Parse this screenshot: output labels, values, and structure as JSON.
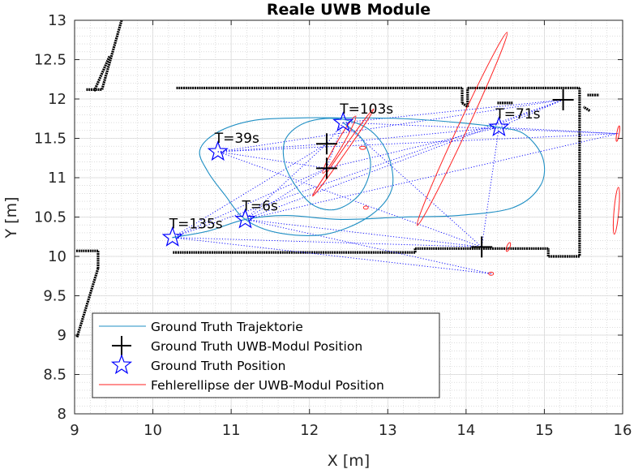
{
  "chart_data": {
    "type": "scatter",
    "title": "Reale UWB Module",
    "xlabel": "X [m]",
    "ylabel": "Y [m]",
    "xlim": [
      9,
      16
    ],
    "ylim": [
      8,
      13
    ],
    "xticks": [
      9,
      10,
      11,
      12,
      13,
      14,
      15,
      16
    ],
    "yticks": [
      8,
      8.5,
      9,
      9.5,
      10,
      10.5,
      11,
      11.5,
      12,
      12.5,
      13
    ],
    "grid": true,
    "minor_grid": true,
    "legend_position": "bottom-left",
    "legend": [
      {
        "label": "Ground Truth Trajektorie",
        "marker": "line",
        "color": "#0072BD"
      },
      {
        "label": "Ground Truth UWB-Modul Position",
        "marker": "plus",
        "color": "#000000"
      },
      {
        "label": "Ground Truth Position",
        "marker": "star",
        "color": "#0000FF"
      },
      {
        "label": "Fehlerellipse der UWB-Modul Position",
        "marker": "line",
        "color": "#FF0000"
      }
    ],
    "gt_positions": [
      {
        "x": 10.25,
        "y": 10.24,
        "label": "T=135s"
      },
      {
        "x": 11.18,
        "y": 10.47,
        "label": "T=6s"
      },
      {
        "x": 10.83,
        "y": 11.33,
        "label": "T=39s"
      },
      {
        "x": 12.43,
        "y": 11.7,
        "label": "T=103s"
      },
      {
        "x": 14.42,
        "y": 11.64,
        "label": "T=71s"
      }
    ],
    "uwb_modules": [
      {
        "x": 12.22,
        "y": 11.43
      },
      {
        "x": 12.22,
        "y": 11.12
      },
      {
        "x": 14.2,
        "y": 10.12
      },
      {
        "x": 15.24,
        "y": 11.99
      }
    ],
    "trajectory": [
      [
        10.25,
        10.24
      ],
      [
        10.7,
        10.32
      ],
      [
        11.18,
        10.47
      ],
      [
        11.7,
        10.52
      ],
      [
        12.4,
        10.47
      ],
      [
        13.2,
        10.5
      ],
      [
        13.9,
        10.52
      ],
      [
        14.6,
        10.62
      ],
      [
        14.95,
        10.9
      ],
      [
        14.98,
        11.25
      ],
      [
        14.75,
        11.55
      ],
      [
        14.42,
        11.64
      ],
      [
        13.9,
        11.7
      ],
      [
        13.2,
        11.75
      ],
      [
        12.43,
        11.76
      ],
      [
        11.9,
        11.76
      ],
      [
        11.3,
        11.73
      ],
      [
        10.83,
        11.58
      ],
      [
        10.6,
        11.35
      ],
      [
        10.7,
        11.08
      ],
      [
        10.92,
        10.78
      ],
      [
        11.18,
        10.47
      ],
      [
        11.6,
        10.3
      ],
      [
        12.2,
        10.28
      ],
      [
        12.75,
        10.5
      ],
      [
        13.05,
        10.85
      ],
      [
        13.0,
        11.3
      ],
      [
        12.75,
        11.62
      ],
      [
        12.35,
        11.75
      ],
      [
        11.95,
        11.7
      ],
      [
        11.7,
        11.5
      ],
      [
        11.68,
        11.2
      ],
      [
        11.82,
        10.9
      ],
      [
        12.05,
        10.65
      ],
      [
        12.35,
        10.6
      ],
      [
        12.65,
        10.8
      ],
      [
        12.78,
        11.15
      ],
      [
        12.68,
        11.48
      ],
      [
        12.43,
        11.7
      ]
    ],
    "error_ellipses": [
      {
        "cx": 13.95,
        "cy": 11.62,
        "rx": 1.36,
        "ry": 0.06,
        "angle_deg": -65
      },
      {
        "cx": 12.43,
        "cy": 11.32,
        "rx": 0.68,
        "ry": 0.025,
        "angle_deg": -55
      },
      {
        "cx": 12.38,
        "cy": 11.42,
        "rx": 0.42,
        "ry": 0.04,
        "angle_deg": -60
      },
      {
        "cx": 15.92,
        "cy": 10.58,
        "rx": 0.3,
        "ry": 0.03,
        "angle_deg": -85
      },
      {
        "cx": 15.94,
        "cy": 11.56,
        "rx": 0.1,
        "ry": 0.015,
        "angle_deg": -80
      },
      {
        "cx": 14.54,
        "cy": 10.12,
        "rx": 0.06,
        "ry": 0.02,
        "angle_deg": -70
      },
      {
        "cx": 14.32,
        "cy": 9.78,
        "rx": 0.03,
        "ry": 0.02,
        "angle_deg": 0
      },
      {
        "cx": 12.72,
        "cy": 10.62,
        "rx": 0.03,
        "ry": 0.02,
        "angle_deg": 0
      },
      {
        "cx": 12.68,
        "cy": 11.38,
        "rx": 0.04,
        "ry": 0.02,
        "angle_deg": 0
      }
    ],
    "map_walls": [
      [
        [
          9.15,
          12.12
        ],
        [
          9.35,
          12.12
        ]
      ],
      [
        [
          9.35,
          12.12
        ],
        [
          9.6,
          13.0
        ]
      ],
      [
        [
          9.25,
          12.1
        ],
        [
          9.45,
          12.55
        ]
      ],
      [
        [
          10.3,
          12.14
        ],
        [
          13.0,
          12.14
        ]
      ],
      [
        [
          13.0,
          12.14
        ],
        [
          13.95,
          12.14
        ]
      ],
      [
        [
          13.95,
          12.14
        ],
        [
          13.95,
          11.95
        ]
      ],
      [
        [
          13.95,
          11.95
        ],
        [
          14.02,
          11.9
        ]
      ],
      [
        [
          14.02,
          11.9
        ],
        [
          14.02,
          12.14
        ]
      ],
      [
        [
          14.02,
          12.14
        ],
        [
          15.45,
          12.14
        ]
      ],
      [
        [
          15.45,
          12.14
        ],
        [
          15.45,
          10.0
        ]
      ],
      [
        [
          15.45,
          10.0
        ],
        [
          15.05,
          10.0
        ]
      ],
      [
        [
          15.05,
          10.0
        ],
        [
          15.05,
          10.1
        ]
      ],
      [
        [
          15.05,
          10.1
        ],
        [
          13.35,
          10.1
        ]
      ],
      [
        [
          13.35,
          10.1
        ],
        [
          13.35,
          10.05
        ]
      ],
      [
        [
          13.35,
          10.05
        ],
        [
          10.25,
          10.05
        ]
      ],
      [
        [
          9.02,
          10.07
        ],
        [
          9.3,
          10.07
        ]
      ],
      [
        [
          9.3,
          10.07
        ],
        [
          9.3,
          9.85
        ]
      ],
      [
        [
          9.3,
          9.85
        ],
        [
          9.03,
          8.97
        ]
      ],
      [
        [
          15.55,
          12.05
        ],
        [
          15.7,
          12.05
        ]
      ],
      [
        [
          15.58,
          11.85
        ],
        [
          15.5,
          11.9
        ]
      ],
      [
        [
          14.4,
          11.95
        ],
        [
          14.6,
          11.95
        ]
      ]
    ],
    "rays": [
      {
        "from": [
          10.25,
          10.24
        ],
        "to_module": [
          12.22,
          11.43
        ]
      },
      {
        "from": [
          10.25,
          10.24
        ],
        "to_module": [
          12.22,
          11.12
        ]
      },
      {
        "from": [
          10.25,
          10.24
        ],
        "to_module": [
          14.2,
          10.12
        ]
      },
      {
        "from": [
          10.25,
          10.24
        ],
        "to_module": [
          15.24,
          11.99
        ]
      },
      {
        "from": [
          11.18,
          10.47
        ],
        "to_module": [
          12.22,
          11.43
        ]
      },
      {
        "from": [
          11.18,
          10.47
        ],
        "to_module": [
          12.22,
          11.12
        ]
      },
      {
        "from": [
          11.18,
          10.47
        ],
        "to_module": [
          14.2,
          10.12
        ]
      },
      {
        "from": [
          11.18,
          10.47
        ],
        "to_module": [
          15.24,
          11.99
        ]
      },
      {
        "from": [
          10.83,
          11.33
        ],
        "to_module": [
          12.22,
          11.43
        ]
      },
      {
        "from": [
          10.83,
          11.33
        ],
        "to_module": [
          12.22,
          11.12
        ]
      },
      {
        "from": [
          10.83,
          11.33
        ],
        "to_module": [
          14.2,
          10.12
        ]
      },
      {
        "from": [
          10.83,
          11.33
        ],
        "to_module": [
          15.24,
          11.99
        ]
      },
      {
        "from": [
          12.43,
          11.7
        ],
        "to_module": [
          12.22,
          11.43
        ]
      },
      {
        "from": [
          12.43,
          11.7
        ],
        "to_module": [
          12.22,
          11.12
        ]
      },
      {
        "from": [
          12.43,
          11.7
        ],
        "to_module": [
          14.2,
          10.12
        ]
      },
      {
        "from": [
          12.43,
          11.7
        ],
        "to_module": [
          15.24,
          11.99
        ]
      },
      {
        "from": [
          14.42,
          11.64
        ],
        "to_module": [
          12.22,
          11.43
        ]
      },
      {
        "from": [
          14.42,
          11.64
        ],
        "to_module": [
          12.22,
          11.12
        ]
      },
      {
        "from": [
          14.42,
          11.64
        ],
        "to_module": [
          14.2,
          10.12
        ]
      },
      {
        "from": [
          14.42,
          11.64
        ],
        "to_module": [
          15.24,
          11.99
        ]
      },
      {
        "from": [
          10.25,
          10.24
        ],
        "to_module": [
          14.32,
          9.78
        ]
      },
      {
        "from": [
          11.18,
          10.47
        ],
        "to_module": [
          14.32,
          9.78
        ]
      },
      {
        "from": [
          10.83,
          11.33
        ],
        "to_module": [
          15.94,
          11.56
        ]
      },
      {
        "from": [
          12.43,
          11.7
        ],
        "to_module": [
          15.94,
          11.56
        ]
      },
      {
        "from": [
          11.18,
          10.47
        ],
        "to_module": [
          15.94,
          11.56
        ]
      },
      {
        "from": [
          14.42,
          11.64
        ],
        "to_module": [
          15.94,
          11.56
        ]
      }
    ]
  }
}
